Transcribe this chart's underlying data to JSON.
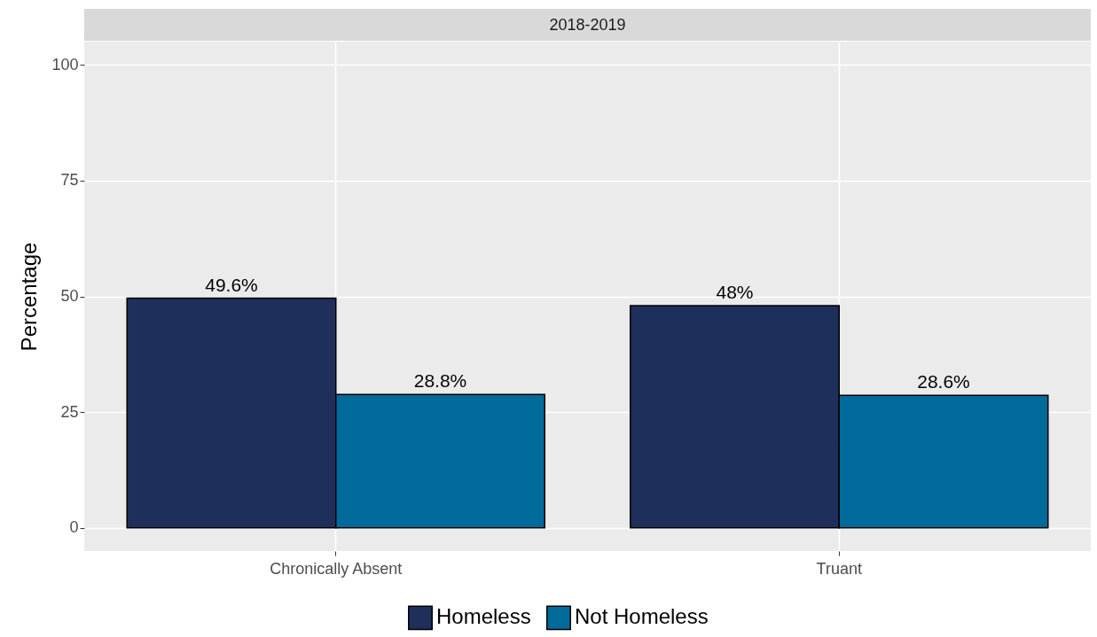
{
  "chart_data": {
    "type": "bar",
    "title": "2018-2019",
    "ylabel": "Percentage",
    "categories": [
      "Chronically Absent",
      "Truant"
    ],
    "series": [
      {
        "name": "Homeless",
        "color": "#1f2f5c",
        "values": [
          49.6,
          48
        ],
        "value_labels": [
          "49.6%",
          "48%"
        ]
      },
      {
        "name": "Not Homeless",
        "color": "#006a9a",
        "values": [
          28.8,
          28.6
        ],
        "value_labels": [
          "28.8%",
          "28.6%"
        ]
      }
    ],
    "ylim": [
      -5,
      105
    ],
    "yticks": [
      0,
      25,
      50,
      75,
      100
    ],
    "grid": true,
    "legend": "bottom"
  }
}
